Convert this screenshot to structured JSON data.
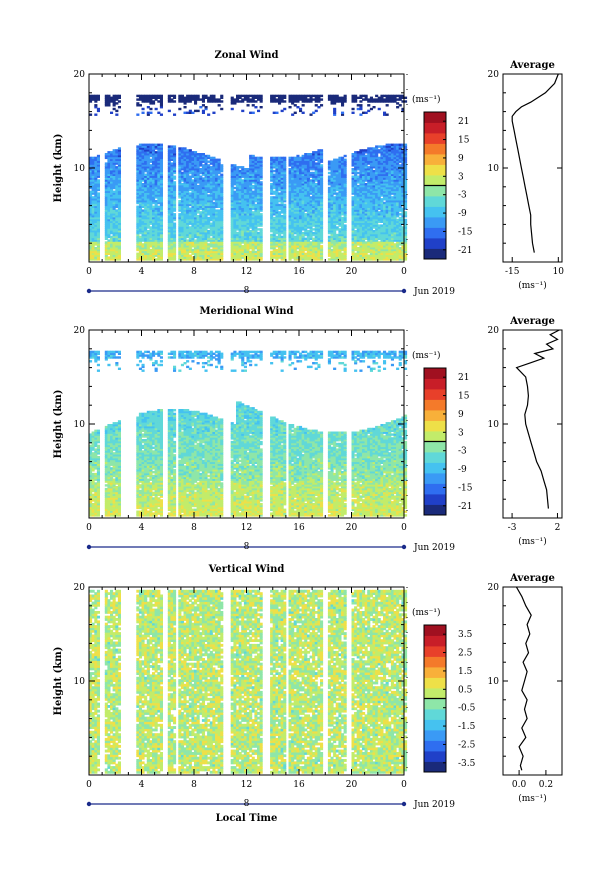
{
  "chart_data": [
    {
      "type": "heatmap",
      "title": "Zonal Wind",
      "ylabel": "Height (km)",
      "ylim": [
        0,
        20
      ],
      "y_ticks": [
        "10",
        "20"
      ],
      "x_ticks": [
        "0",
        "4",
        "8",
        "12",
        "16",
        "20",
        "0"
      ],
      "xlim": [
        0,
        24
      ],
      "date_marker": "8",
      "date_label": "Jun 2019",
      "colorbar": {
        "unit": "(ms⁻¹)",
        "ticks": [
          "21",
          "15",
          "9",
          "3",
          "-3",
          "-9",
          "-15",
          "-21"
        ],
        "range": [
          -24,
          24
        ],
        "colors": [
          "#1a2a7a",
          "#2040c8",
          "#2f6ef0",
          "#3a9af5",
          "#45c2f0",
          "#60d8d8",
          "#8ee6a8",
          "#c2ec6a",
          "#eee048",
          "#f8b03a",
          "#f47a2a",
          "#e8402a",
          "#c81e28",
          "#a01020"
        ]
      },
      "profile": {
        "title": "Average",
        "x_ticks": [
          "-15",
          "10"
        ],
        "xlim": [
          -20,
          12
        ],
        "unit": "(ms⁻¹)",
        "y_ticks": [
          "10",
          "20"
        ],
        "heights": [
          1,
          2,
          3,
          4,
          5,
          6,
          7,
          8,
          9,
          10,
          11,
          12,
          13,
          14,
          15,
          15.5,
          16,
          16.5,
          17,
          18,
          19,
          20
        ],
        "values": [
          -3,
          -4,
          -4.5,
          -5,
          -5,
          -6,
          -7,
          -8,
          -9,
          -10,
          -11,
          -12,
          -13,
          -14,
          -15,
          -15,
          -13,
          -10,
          -5,
          3,
          8,
          10
        ]
      }
    },
    {
      "type": "heatmap",
      "title": "Meridional Wind",
      "ylabel": "Height (km)",
      "ylim": [
        0,
        20
      ],
      "y_ticks": [
        "10",
        "20"
      ],
      "x_ticks": [
        "0",
        "4",
        "8",
        "12",
        "16",
        "20",
        "0"
      ],
      "xlim": [
        0,
        24
      ],
      "date_marker": "8",
      "date_label": "Jun 2019",
      "colorbar": {
        "unit": "(ms⁻¹)",
        "ticks": [
          "21",
          "15",
          "9",
          "3",
          "-3",
          "-9",
          "-15",
          "-21"
        ],
        "range": [
          -24,
          24
        ],
        "colors": [
          "#1a2a7a",
          "#2040c8",
          "#2f6ef0",
          "#3a9af5",
          "#45c2f0",
          "#60d8d8",
          "#8ee6a8",
          "#c2ec6a",
          "#eee048",
          "#f8b03a",
          "#f47a2a",
          "#e8402a",
          "#c81e28",
          "#a01020"
        ]
      },
      "profile": {
        "title": "Average",
        "x_ticks": [
          "-3",
          "2"
        ],
        "xlim": [
          -4,
          2.5
        ],
        "unit": "(ms⁻¹)",
        "y_ticks": [
          "10",
          "20"
        ],
        "heights": [
          1,
          2,
          3,
          4,
          5,
          6,
          7,
          8,
          9,
          10,
          11,
          12,
          13,
          14,
          15,
          16,
          16.5,
          17,
          17.5,
          18,
          18.5,
          19,
          19.5,
          20
        ],
        "values": [
          1.0,
          0.9,
          0.8,
          0.5,
          0.2,
          -0.3,
          -0.6,
          -0.9,
          -1.2,
          -1.5,
          -1.6,
          -1.3,
          -1.2,
          -1.3,
          -1.5,
          -2.5,
          -1.0,
          0.5,
          -0.5,
          1.5,
          0.8,
          2.0,
          1.2,
          2.2
        ]
      }
    },
    {
      "type": "heatmap",
      "title": "Vertical Wind",
      "ylabel": "Height (km)",
      "xlabel": "Local Time",
      "ylim": [
        0,
        20
      ],
      "y_ticks": [
        "10",
        "20"
      ],
      "x_ticks": [
        "0",
        "4",
        "8",
        "12",
        "16",
        "20",
        "0"
      ],
      "xlim": [
        0,
        24
      ],
      "date_marker": "8",
      "date_label": "Jun 2019",
      "colorbar": {
        "unit": "(ms⁻¹)",
        "ticks": [
          "3.5",
          "2.5",
          "1.5",
          "0.5",
          "-0.5",
          "-1.5",
          "-2.5",
          "-3.5"
        ],
        "range": [
          -4,
          4
        ],
        "colors": [
          "#1a2a7a",
          "#2040c8",
          "#2f6ef0",
          "#3a9af5",
          "#45c2f0",
          "#60d8d8",
          "#8ee6a8",
          "#c2ec6a",
          "#eee048",
          "#f8b03a",
          "#f47a2a",
          "#e8402a",
          "#c81e28",
          "#a01020"
        ]
      },
      "profile": {
        "title": "Average",
        "x_ticks": [
          "0.0",
          "0.2"
        ],
        "xlim": [
          -0.12,
          0.32
        ],
        "unit": "(ms⁻¹)",
        "y_ticks": [
          "10",
          "20"
        ],
        "heights": [
          0.5,
          1,
          2,
          3,
          4,
          5,
          6,
          7,
          8,
          9,
          10,
          11,
          12,
          13,
          14,
          15,
          16,
          17,
          18,
          19,
          20
        ],
        "values": [
          0.02,
          0.01,
          0.03,
          0.0,
          0.05,
          0.02,
          0.06,
          0.04,
          0.06,
          0.02,
          0.04,
          0.06,
          0.03,
          0.07,
          0.05,
          0.08,
          0.06,
          0.09,
          0.05,
          0.02,
          -0.02
        ]
      }
    }
  ]
}
